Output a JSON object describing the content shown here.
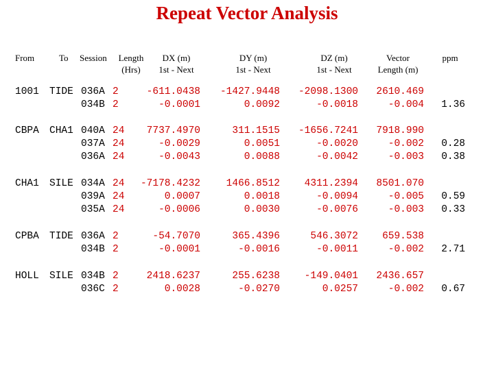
{
  "colors": {
    "title": "#cc0000",
    "data": "#cc0000",
    "text": "#000000",
    "background": "#ffffff"
  },
  "title": "Repeat Vector Analysis",
  "headers": {
    "from": "From",
    "to": "To",
    "session": "Session",
    "length": "Length\n(Hrs)",
    "dx": "DX (m)\n1st - Next",
    "dy": "DY (m)\n1st - Next",
    "dz": "DZ (m)\n1st - Next",
    "vector": "Vector\nLength (m)",
    "ppm": "ppm"
  },
  "groups": [
    {
      "from": "1001",
      "to": "TIDE",
      "rows": [
        {
          "session": "036A",
          "length": "2",
          "dx": "-611.0438",
          "dy": "-1427.9448",
          "dz": "-2098.1300",
          "vector": "2610.469",
          "ppm": ""
        },
        {
          "session": "034B",
          "length": "2",
          "dx": "-0.0001",
          "dy": "0.0092",
          "dz": "-0.0018",
          "vector": "-0.004",
          "ppm": "1.36"
        }
      ]
    },
    {
      "from": "CBPA",
      "to": "CHA1",
      "rows": [
        {
          "session": "040A",
          "length": "24",
          "dx": "7737.4970",
          "dy": "311.1515",
          "dz": "-1656.7241",
          "vector": "7918.990",
          "ppm": ""
        },
        {
          "session": "037A",
          "length": "24",
          "dx": "-0.0029",
          "dy": "0.0051",
          "dz": "-0.0020",
          "vector": "-0.002",
          "ppm": "0.28"
        },
        {
          "session": "036A",
          "length": "24",
          "dx": "-0.0043",
          "dy": "0.0088",
          "dz": "-0.0042",
          "vector": "-0.003",
          "ppm": "0.38"
        }
      ]
    },
    {
      "from": "CHA1",
      "to": "SILE",
      "rows": [
        {
          "session": "034A",
          "length": "24",
          "dx": "-7178.4232",
          "dy": "1466.8512",
          "dz": "4311.2394",
          "vector": "8501.070",
          "ppm": ""
        },
        {
          "session": "039A",
          "length": "24",
          "dx": "0.0007",
          "dy": "0.0018",
          "dz": "-0.0094",
          "vector": "-0.005",
          "ppm": "0.59"
        },
        {
          "session": "035A",
          "length": "24",
          "dx": "-0.0006",
          "dy": "0.0030",
          "dz": "-0.0076",
          "vector": "-0.003",
          "ppm": "0.33"
        }
      ]
    },
    {
      "from": "CPBA",
      "to": "TIDE",
      "rows": [
        {
          "session": "036A",
          "length": "2",
          "dx": "-54.7070",
          "dy": "365.4396",
          "dz": "546.3072",
          "vector": "659.538",
          "ppm": ""
        },
        {
          "session": "034B",
          "length": "2",
          "dx": "-0.0001",
          "dy": "-0.0016",
          "dz": "-0.0011",
          "vector": "-0.002",
          "ppm": "2.71"
        }
      ]
    },
    {
      "from": "HOLL",
      "to": "SILE",
      "rows": [
        {
          "session": "034B",
          "length": "2",
          "dx": "2418.6237",
          "dy": "255.6238",
          "dz": "-149.0401",
          "vector": "2436.657",
          "ppm": ""
        },
        {
          "session": "036C",
          "length": "2",
          "dx": "0.0028",
          "dy": "-0.0270",
          "dz": "0.0257",
          "vector": "-0.002",
          "ppm": "0.67"
        }
      ]
    }
  ]
}
